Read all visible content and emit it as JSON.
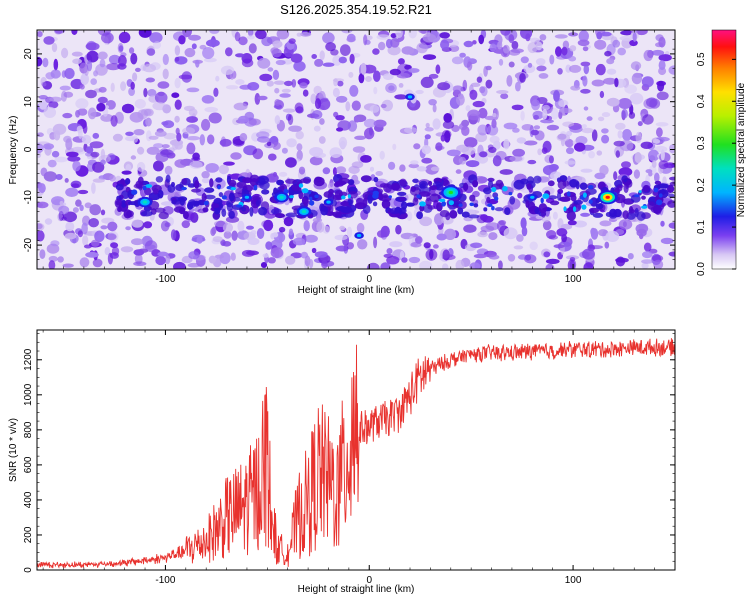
{
  "title": "S126.2025.354.19.52.R21",
  "colors": {
    "series_line": "#e8322e",
    "axes": "#000000",
    "background_low": "#e9e2f6",
    "blob_dark": "#6a20e0"
  },
  "chart_data": [
    {
      "type": "heatmap",
      "name": "spectrogram",
      "xlabel": "Height of straight line (km)",
      "ylabel": "Frequency (Hz)",
      "xlim": [
        -163,
        150
      ],
      "ylim": [
        -25,
        25
      ],
      "xticks": [
        -100,
        0,
        100
      ],
      "xtick_labels": [
        "-100",
        "0",
        "100"
      ],
      "yticks": [
        -20,
        -10,
        0,
        10,
        20
      ],
      "ytick_labels": [
        "-20",
        "-10",
        "0",
        "10",
        "20"
      ],
      "colorbar": {
        "label": "Normalized spectral amplitude",
        "range": [
          0,
          0.57
        ],
        "ticks": [
          0.0,
          0.1,
          0.2,
          0.3,
          0.4,
          0.5
        ],
        "tick_labels": [
          "0.0",
          "0.1",
          "0.2",
          "0.3",
          "0.4",
          "0.5"
        ]
      },
      "signal_band": {
        "freq_hz": -10,
        "x_start_km": -125,
        "x_end_km": 150
      },
      "peaks": [
        {
          "x_km": 40,
          "freq_hz": -9,
          "amplitude": 0.4
        },
        {
          "x_km": 117,
          "freq_hz": -10,
          "amplitude": 0.55
        },
        {
          "x_km": -43,
          "freq_hz": -10,
          "amplitude": 0.25
        },
        {
          "x_km": -32,
          "freq_hz": -13,
          "amplitude": 0.22
        },
        {
          "x_km": -110,
          "freq_hz": -11,
          "amplitude": 0.2
        },
        {
          "x_km": -60,
          "freq_hz": -10,
          "amplitude": 0.15
        },
        {
          "x_km": 80,
          "freq_hz": -10,
          "amplitude": 0.18
        },
        {
          "x_km": 20,
          "freq_hz": 11,
          "amplitude": 0.12
        },
        {
          "x_km": -20,
          "freq_hz": -11,
          "amplitude": 0.14
        },
        {
          "x_km": -5,
          "freq_hz": -18,
          "amplitude": 0.12
        }
      ]
    },
    {
      "type": "line",
      "name": "snr",
      "xlabel": "Height of straight line (km)",
      "ylabel": "SNR (10 * v/v)",
      "xlim": [
        -163,
        150
      ],
      "ylim": [
        0,
        1370
      ],
      "xticks": [
        -100,
        0,
        100
      ],
      "xtick_labels": [
        "-100",
        "0",
        "100"
      ],
      "yticks": [
        0,
        200,
        400,
        600,
        800,
        1000,
        1200
      ],
      "ytick_labels": [
        "0",
        "200",
        "400",
        "600",
        "800",
        "1000",
        "1200"
      ],
      "series": [
        {
          "name": "SNR",
          "x": [
            -163,
            -140,
            -120,
            -100,
            -90,
            -80,
            -75,
            -70,
            -65,
            -60,
            -55,
            -52,
            -50,
            -48,
            -45,
            -40,
            -35,
            -30,
            -25,
            -20,
            -15,
            -10,
            -8,
            -5,
            0,
            5,
            10,
            15,
            20,
            25,
            30,
            40,
            50,
            60,
            70,
            80,
            90,
            100,
            110,
            120,
            130,
            140,
            150
          ],
          "y": [
            30,
            30,
            40,
            70,
            110,
            170,
            230,
            300,
            330,
            380,
            450,
            600,
            650,
            300,
            120,
            100,
            300,
            400,
            550,
            500,
            450,
            700,
            900,
            800,
            820,
            850,
            870,
            900,
            1000,
            1100,
            1150,
            1200,
            1230,
            1240,
            1240,
            1250,
            1250,
            1260,
            1260,
            1260,
            1270,
            1270,
            1270
          ]
        }
      ]
    }
  ]
}
